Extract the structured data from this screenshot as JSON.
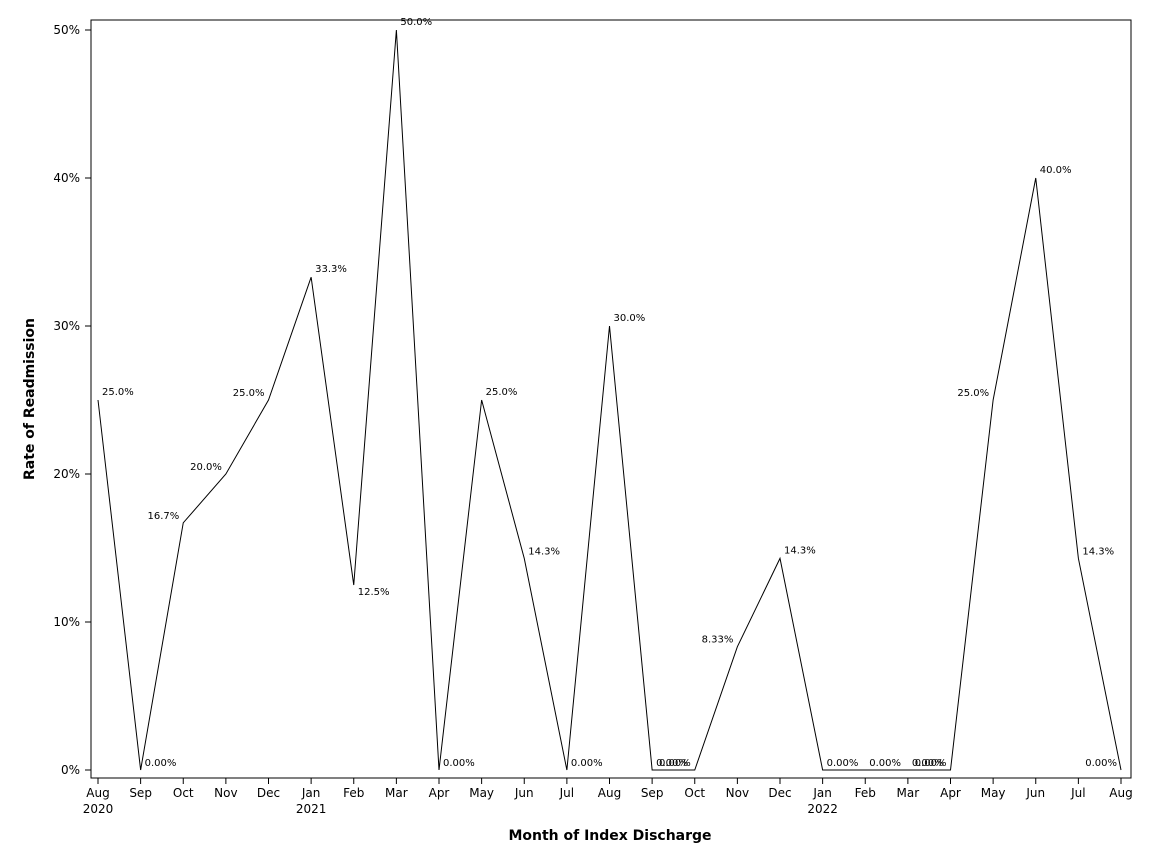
{
  "chart_data": {
    "type": "line",
    "title": "",
    "xlabel": "Month of Index Discharge",
    "ylabel": "Rate of Readmission",
    "ylim": [
      0,
      50
    ],
    "grid": false,
    "legend": "none",
    "y_ticks": [
      "0%",
      "10%",
      "20%",
      "30%",
      "40%",
      "50%"
    ],
    "y_tick_values": [
      0,
      10,
      20,
      30,
      40,
      50
    ],
    "categories": [
      "Aug",
      "Sep",
      "Oct",
      "Nov",
      "Dec",
      "Jan",
      "Feb",
      "Mar",
      "Apr",
      "May",
      "Jun",
      "Jul",
      "Aug",
      "Sep",
      "Oct",
      "Nov",
      "Dec",
      "Jan",
      "Feb",
      "Mar",
      "Apr",
      "May",
      "Jun",
      "Jul",
      "Aug"
    ],
    "year_labels": [
      "2020",
      "",
      "",
      "",
      "",
      "2021",
      "",
      "",
      "",
      "",
      "",
      "",
      "",
      "",
      "",
      "",
      "",
      "2022",
      "",
      "",
      "",
      "",
      "",
      "",
      ""
    ],
    "values": [
      25.0,
      0.0,
      16.7,
      20.0,
      25.0,
      33.3,
      12.5,
      50.0,
      0.0,
      25.0,
      14.3,
      0.0,
      30.0,
      0.0,
      0.0,
      8.33,
      14.3,
      0.0,
      0.0,
      0.0,
      0.0,
      25.0,
      40.0,
      14.3,
      0.0
    ],
    "data_labels": [
      "25.0%",
      "0.00%",
      "16.7%",
      "20.0%",
      "25.0%",
      "33.3%",
      "12.5%",
      "50.0%",
      "0.00%",
      "25.0%",
      "14.3%",
      "0.00%",
      "30.0%",
      "0.00%",
      "0.00%",
      "8.33%",
      "14.3%",
      "0.00%",
      "0.00%",
      "0.00%",
      "0.00%",
      "25.0%",
      "40.0%",
      "14.3%",
      "0.00%"
    ],
    "line_color": "#000000"
  }
}
